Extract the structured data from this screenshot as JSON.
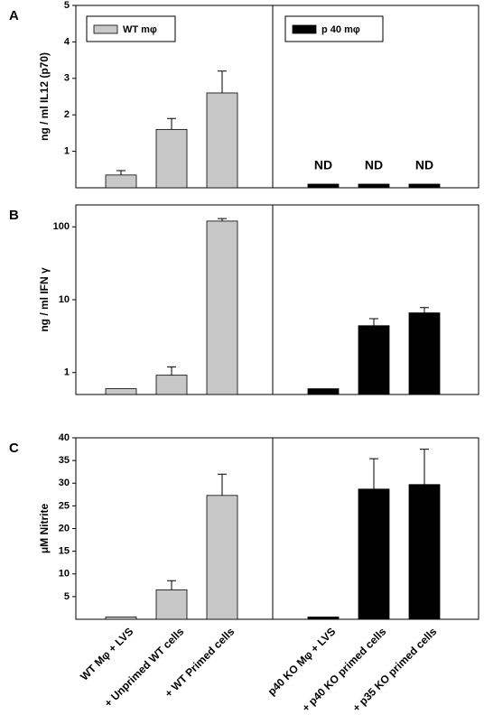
{
  "chart_data": [
    {
      "type": "bar",
      "panel_label": "A",
      "y_label": "ng / ml IL12 (p70)",
      "categories": [
        null,
        null,
        null,
        null,
        null,
        null
      ],
      "series": [
        {
          "name": "WT mφ",
          "color": "#c8c8c8",
          "values": [
            0.35,
            1.6,
            2.6,
            null,
            null,
            null
          ],
          "errors": [
            0.12,
            0.3,
            0.6,
            null,
            null,
            null
          ]
        },
        {
          "name": "p 40 mφ",
          "color": "#000000",
          "values": [
            null,
            null,
            null,
            0.1,
            0.1,
            0.1
          ],
          "errors": [
            null,
            null,
            null,
            null,
            null,
            null
          ]
        }
      ],
      "annotations": [
        "ND",
        "ND",
        "ND"
      ],
      "ylim": [
        0,
        5
      ],
      "yticks": [
        1,
        2,
        3,
        4,
        5
      ],
      "log": false
    },
    {
      "type": "bar",
      "panel_label": "B",
      "y_label": "ng / ml IFN γ",
      "categories": [
        null,
        null,
        null,
        null,
        null,
        null
      ],
      "series": [
        {
          "color": "#c8c8c8",
          "values": [
            0.6,
            0.92,
            120,
            null,
            null,
            null
          ],
          "errors": [
            null,
            0.28,
            10,
            null,
            null,
            null
          ]
        },
        {
          "color": "#000000",
          "values": [
            null,
            null,
            null,
            0.6,
            4.4,
            6.6
          ],
          "errors": [
            null,
            null,
            null,
            null,
            1.1,
            1.2
          ]
        }
      ],
      "ylim": [
        0.5,
        200
      ],
      "yticks": [
        1,
        10,
        100
      ],
      "log": true
    },
    {
      "type": "bar",
      "panel_label": "C",
      "y_label": "μM Nitrite",
      "categories": [
        "WT Mφ + LVS",
        "+ Unprimed WT cells",
        "+ WT Primed cells",
        "p40 KO Mφ + LVS",
        "+ p40 KO primed cells",
        "+ p35 KO primed cells"
      ],
      "series": [
        {
          "color": "#c8c8c8",
          "values": [
            0.5,
            6.5,
            27.3,
            null,
            null,
            null
          ],
          "errors": [
            null,
            2,
            4.7,
            null,
            null,
            null
          ]
        },
        {
          "color": "#000000",
          "values": [
            null,
            null,
            null,
            0.5,
            28.7,
            29.7
          ],
          "errors": [
            null,
            null,
            null,
            null,
            6.7,
            7.8
          ]
        }
      ],
      "ylim": [
        0,
        40
      ],
      "yticks": [
        5,
        10,
        15,
        20,
        25,
        30,
        35,
        40
      ],
      "log": false
    }
  ]
}
